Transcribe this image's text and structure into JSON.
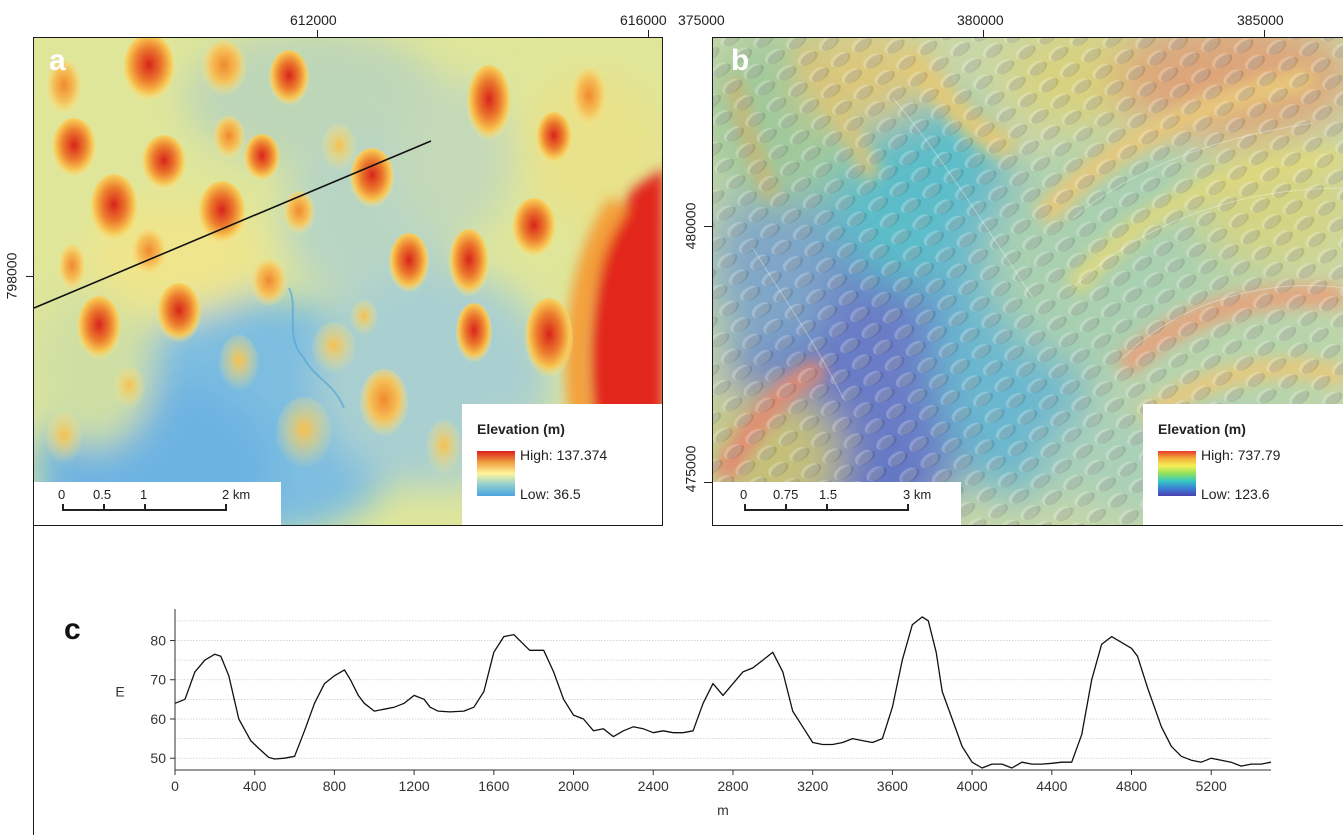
{
  "panel_a": {
    "letter": "a",
    "x_ticks": [
      "612000",
      "616000"
    ],
    "y_ticks": [
      "798000"
    ],
    "legend": {
      "title": "Elevation (m)",
      "high": "High: 137.374",
      "low": "Low: 36.5",
      "ramp_colors": [
        "#dd1f1a",
        "#f0a040",
        "#fff59a",
        "#8fcfd0",
        "#4aa3dd"
      ]
    },
    "scale_labels": [
      "0",
      "0.5",
      "1",
      "2 km"
    ]
  },
  "panel_b": {
    "letter": "b",
    "x_ticks": [
      "375000",
      "380000",
      "385000"
    ],
    "y_ticks": [
      "480000",
      "475000"
    ],
    "legend": {
      "title": "Elevation (m)",
      "high": "High: 737.79",
      "low": "Low: 123.6",
      "ramp_colors": [
        "#e63a2a",
        "#f3b23a",
        "#f4ee57",
        "#8fe05a",
        "#37c9c4",
        "#3b7ed6",
        "#4b3fb0"
      ]
    },
    "scale_labels": [
      "0",
      "0.75",
      "1.5",
      "3 km"
    ]
  },
  "panel_c": {
    "letter": "c",
    "chart_data": {
      "type": "line",
      "xlabel": "m",
      "ylabel": "E",
      "xlim": [
        0,
        5500
      ],
      "ylim": [
        47,
        87
      ],
      "x_ticks": [
        0,
        400,
        800,
        1200,
        1600,
        2000,
        2400,
        2800,
        3200,
        3600,
        4000,
        4400,
        4800,
        5200
      ],
      "y_ticks": [
        50,
        60,
        70,
        80
      ],
      "grid": true,
      "series": [
        {
          "x": [
            0,
            50,
            100,
            150,
            200,
            230,
            270,
            320,
            380,
            420,
            470,
            500,
            550,
            600,
            650,
            700,
            750,
            800,
            850,
            880,
            920,
            950,
            1000,
            1050,
            1100,
            1150,
            1200,
            1250,
            1280,
            1320,
            1380,
            1450,
            1500,
            1550,
            1600,
            1650,
            1700,
            1750,
            1780,
            1800,
            1850,
            1900,
            1950,
            2000,
            2050,
            2100,
            2150,
            2200,
            2250,
            2300,
            2350,
            2400,
            2450,
            2500,
            2550,
            2600,
            2650,
            2700,
            2750,
            2800,
            2850,
            2900,
            2950,
            3000,
            3050,
            3100,
            3150,
            3200,
            3250,
            3300,
            3350,
            3400,
            3450,
            3500,
            3550,
            3600,
            3650,
            3700,
            3750,
            3780,
            3820,
            3850,
            3900,
            3950,
            4000,
            4050,
            4100,
            4150,
            4200,
            4250,
            4300,
            4350,
            4400,
            4450,
            4500,
            4550,
            4600,
            4650,
            4700,
            4750,
            4800,
            4830,
            4880,
            4950,
            5000,
            5050,
            5100,
            5150,
            5200,
            5250,
            5300,
            5350,
            5400,
            5450,
            5500
          ],
          "y": [
            64,
            65,
            72,
            75,
            76.5,
            76,
            71,
            60,
            54.5,
            52.5,
            50.2,
            49.8,
            50,
            50.5,
            57,
            64,
            69,
            71,
            72.5,
            70,
            66,
            64,
            62,
            62.5,
            63,
            64,
            66,
            65,
            63,
            62,
            61.8,
            62,
            63,
            67,
            77,
            81,
            81.5,
            79,
            77.5,
            77.5,
            77.5,
            72,
            65,
            61,
            60,
            57,
            57.5,
            55.5,
            57,
            58,
            57.5,
            56.5,
            57,
            56.5,
            56.5,
            57,
            64,
            69,
            66,
            69,
            72,
            73,
            75,
            77,
            72,
            62,
            58,
            54,
            53.5,
            53.5,
            54,
            55,
            54.5,
            54,
            55,
            63,
            75,
            84,
            86,
            85,
            77,
            67,
            60,
            53,
            49,
            47.5,
            48.5,
            48.5,
            47.5,
            49,
            48.5,
            48.5,
            48.7,
            49,
            49,
            56,
            70,
            79,
            81,
            79.5,
            78,
            76,
            68,
            58,
            53,
            50.5,
            49.5,
            49,
            50,
            49.5,
            49,
            48,
            48.5,
            48.5,
            49
          ]
        }
      ]
    }
  }
}
